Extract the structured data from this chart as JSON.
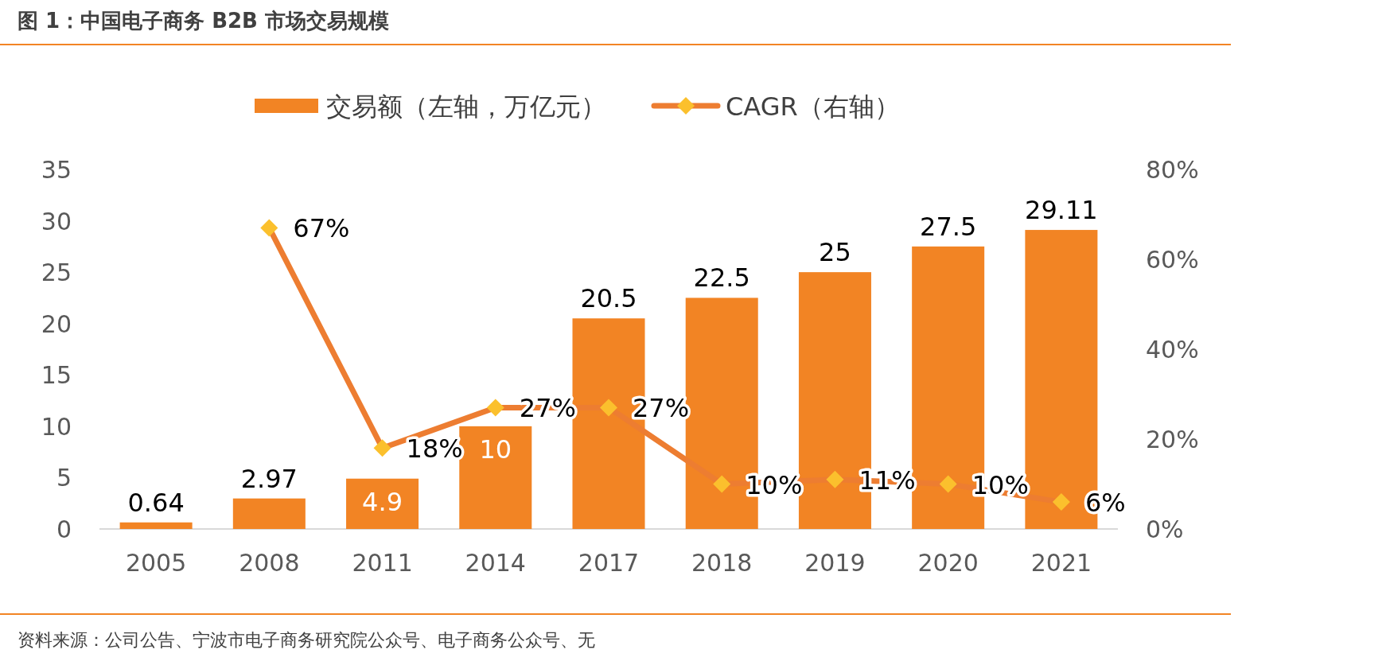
{
  "chart_data": {
    "type": "bar",
    "title": "图 1：中国电子商务 B2B 市场交易规模",
    "categories": [
      "2005",
      "2008",
      "2011",
      "2014",
      "2017",
      "2018",
      "2019",
      "2020",
      "2021"
    ],
    "series": [
      {
        "name": "交易额（左轴，万亿元）",
        "type": "bar",
        "color": "#f28424",
        "values": [
          0.64,
          2.97,
          4.9,
          10,
          20.5,
          22.5,
          25,
          27.5,
          29.11
        ],
        "value_labels": [
          "0.64",
          "2.97",
          "4.9",
          "10",
          "20.5",
          "22.5",
          "25",
          "27.5",
          "29.11"
        ]
      },
      {
        "name": "CAGR（右轴）",
        "type": "line",
        "axis": "y2",
        "color": "#ed7d31",
        "colors": [
          null,
          "#fbc02d",
          "#fbc02d",
          "#fbc02d",
          "#fbc02d",
          "#fbc02d",
          "#fbc02d",
          "#fbc02d",
          "#fbc02d"
        ],
        "values": [
          null,
          67,
          18,
          27,
          27,
          10,
          11,
          10,
          6
        ],
        "value_labels": [
          null,
          "67%",
          "18%",
          "27%",
          "27%",
          "10%",
          "11%",
          "10%",
          "6%"
        ]
      }
    ],
    "ylim": [
      0,
      35
    ],
    "yticks": [
      0,
      5,
      10,
      15,
      20,
      25,
      30,
      35
    ],
    "y2lim": [
      0,
      80
    ],
    "y2ticks": [
      {
        "value": 0,
        "label": "0%"
      },
      {
        "value": 20,
        "label": "20%"
      },
      {
        "value": 40,
        "label": "40%"
      },
      {
        "value": 60,
        "label": "60%"
      },
      {
        "value": 80,
        "label": "80%"
      }
    ],
    "legend": "top",
    "grid": false,
    "marker": "diamond",
    "line_style": "solid",
    "annotations": [
      "资料来源：公司公告、宁波市电子商务研究院公众号、电子商务公众号、无"
    ]
  }
}
